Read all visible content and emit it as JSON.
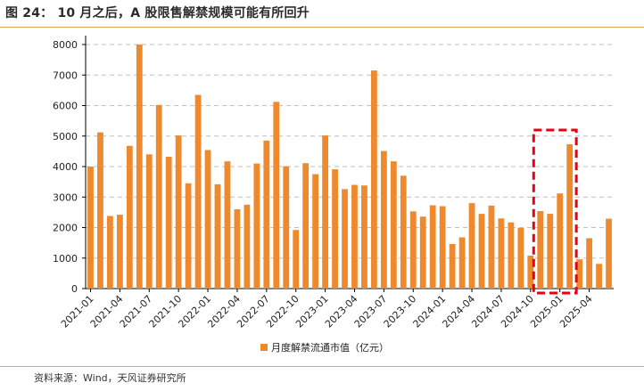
{
  "header": {
    "figure_label": "图 24：",
    "title": "10 月之后，A 股限售解禁规模可能有所回升"
  },
  "source": "资料来源：Wind，天风证券研究所",
  "colors": {
    "bar": "#ee8a2d",
    "highlight": "#e60012",
    "grid": "#bfbfbf",
    "rule": "#e6a25a"
  },
  "chart_data": {
    "type": "bar",
    "x_tick_labels": [
      "2021-01",
      "2021-04",
      "2021-07",
      "2021-10",
      "2022-01",
      "2022-04",
      "2022-07",
      "2022-10",
      "2023-01",
      "2023-04",
      "2023-07",
      "2023-10",
      "2024-01",
      "2024-04",
      "2024-07",
      "2024-10",
      "2025-01",
      "2025-04"
    ],
    "x_start": "2021-01",
    "categories": [
      "2021-01",
      "2021-02",
      "2021-03",
      "2021-04",
      "2021-05",
      "2021-06",
      "2021-07",
      "2021-08",
      "2021-09",
      "2021-10",
      "2021-11",
      "2021-12",
      "2022-01",
      "2022-02",
      "2022-03",
      "2022-04",
      "2022-05",
      "2022-06",
      "2022-07",
      "2022-08",
      "2022-09",
      "2022-10",
      "2022-11",
      "2022-12",
      "2023-01",
      "2023-02",
      "2023-03",
      "2023-04",
      "2023-05",
      "2023-06",
      "2023-07",
      "2023-08",
      "2023-09",
      "2023-10",
      "2023-11",
      "2023-12",
      "2024-01",
      "2024-02",
      "2024-03",
      "2024-04",
      "2024-05",
      "2024-06",
      "2024-07",
      "2024-08",
      "2024-09",
      "2024-10",
      "2024-11",
      "2024-12",
      "2025-01",
      "2025-02",
      "2025-03",
      "2025-04",
      "2025-05",
      "2025-06"
    ],
    "series": [
      {
        "name": "月度解禁流通市值（亿元）",
        "values": [
          4000,
          5120,
          2380,
          2420,
          4680,
          8000,
          4400,
          6020,
          4320,
          5020,
          3450,
          6350,
          4540,
          3420,
          4170,
          2600,
          2750,
          4100,
          4850,
          6120,
          4010,
          1920,
          4110,
          3750,
          5020,
          3910,
          3260,
          3400,
          3380,
          7150,
          4510,
          4170,
          3700,
          2530,
          2360,
          2730,
          2700,
          1460,
          1680,
          2800,
          2450,
          2720,
          2300,
          2170,
          1990,
          1080,
          2540,
          2450,
          3120,
          4730,
          960,
          1650,
          810,
          2290
        ]
      }
    ],
    "ylim": [
      0,
      8000
    ],
    "yticks": [
      0,
      1000,
      2000,
      3000,
      4000,
      5000,
      6000,
      7000,
      8000
    ],
    "grid": "horizontal-dashed",
    "legend": "bottom-center",
    "highlight": {
      "from": "2024-11",
      "to": "2025-02",
      "style": "red-dashed-box"
    }
  }
}
